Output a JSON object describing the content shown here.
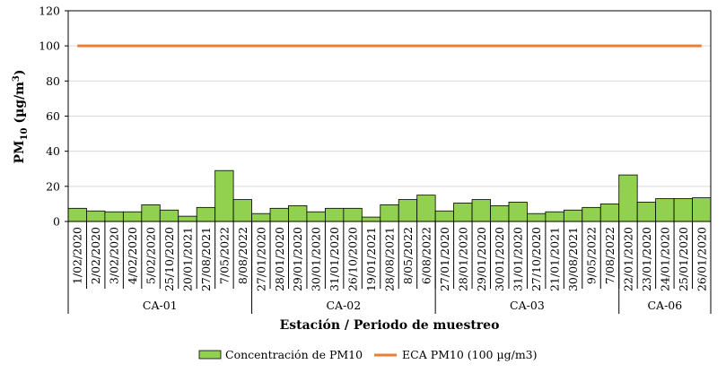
{
  "chart_data": {
    "type": "bar",
    "title": "",
    "xlabel": "Estación / Periodo de muestreo",
    "ylabel": "PM10 (µg/m3)",
    "ylabel_parts": {
      "main": "PM",
      "sub": "10",
      "unit_open": " (µg/m",
      "sup": "3",
      "unit_close": ")"
    },
    "ylim": [
      0,
      120
    ],
    "yticks": [
      "0",
      "20",
      "40",
      "60",
      "80",
      "100",
      "120"
    ],
    "categories": [
      "1/02/2020",
      "2/02/2020",
      "3/02/2020",
      "4/02/2020",
      "5/02/2020",
      "25/10/2020",
      "20/01/2021",
      "27/08/2021",
      "7/05/2022",
      "8/08/2022",
      "27/01/2020",
      "28/01/2020",
      "29/01/2020",
      "30/01/2020",
      "31/01/2020",
      "26/10/2020",
      "19/01/2021",
      "28/08/2021",
      "8/05/2022",
      "6/08/2022",
      "27/01/2020",
      "28/01/2020",
      "29/01/2020",
      "30/01/2020",
      "31/01/2020",
      "27/10/2020",
      "21/01/2021",
      "30/08/2021",
      "9/05/2022",
      "7/08/2022",
      "22/01/2020",
      "23/01/2020",
      "24/01/2020",
      "25/01/2020",
      "26/01/2020"
    ],
    "groups": [
      {
        "name": "CA-01",
        "count": 10
      },
      {
        "name": "CA-02",
        "count": 10
      },
      {
        "name": "CA-03",
        "count": 10
      },
      {
        "name": "CA-06",
        "count": 5
      }
    ],
    "series": [
      {
        "name": "Concentración de PM10",
        "type": "bar",
        "color": "#92d050",
        "values": [
          7.5,
          6,
          5.5,
          5.5,
          9.5,
          6.5,
          3,
          8,
          29,
          12.5,
          4.5,
          7.5,
          9,
          5.5,
          7.5,
          7.5,
          2.5,
          9.5,
          12.5,
          15,
          6,
          10.5,
          12.5,
          9,
          11,
          4.5,
          5.5,
          6.5,
          8,
          10,
          26.5,
          11,
          13,
          13,
          13.5
        ]
      },
      {
        "name": "ECA PM10 (100 µg/m3)",
        "type": "line",
        "color": "#ed7d31",
        "value": 100
      }
    ],
    "legend_position": "bottom",
    "grid": true
  }
}
